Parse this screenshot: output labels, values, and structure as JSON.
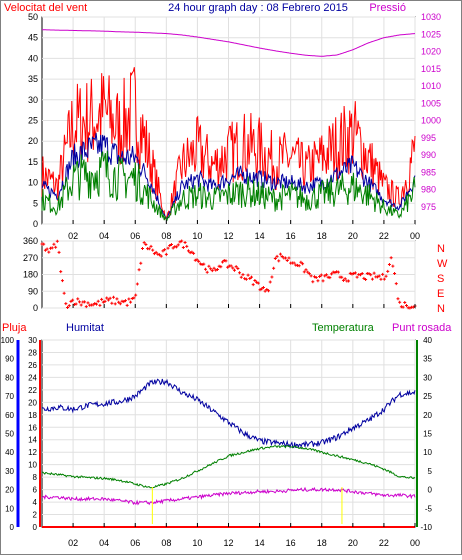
{
  "header": {
    "left_label": "Velocitat del vent",
    "title": "24 hour graph day : 08 Febrero 2015",
    "right_label": "Pressió"
  },
  "colors": {
    "red": "#ff0000",
    "blue": "#0000a0",
    "green": "#008000",
    "magenta": "#cc00cc",
    "yellow": "#ffff00",
    "axis_blue": "#0000ff"
  },
  "x_ticks": [
    "02",
    "04",
    "06",
    "08",
    "10",
    "12",
    "14",
    "16",
    "18",
    "20",
    "22",
    "00"
  ],
  "chart_data": [
    {
      "type": "line",
      "title": "24 hour graph day : 08 Febrero 2015",
      "xlabel": "",
      "ylabel": "Velocitat del vent",
      "y2label": "Pressió",
      "ylim": [
        0,
        50
      ],
      "y2lim": [
        970,
        1030
      ],
      "y_ticks": [
        "0",
        "5",
        "10",
        "15",
        "20",
        "25",
        "30",
        "35",
        "40",
        "45",
        "50"
      ],
      "y2_ticks": [
        "975",
        "980",
        "985",
        "990",
        "995",
        "1000",
        "1005",
        "1010",
        "1015",
        "1020",
        "1025",
        "1030"
      ],
      "x_hours": [
        0,
        1,
        2,
        3,
        4,
        5,
        6,
        7,
        8,
        9,
        10,
        11,
        12,
        13,
        14,
        15,
        16,
        17,
        18,
        19,
        20,
        21,
        22,
        23,
        24
      ],
      "series": [
        {
          "name": "",
          "color": "#ff0000",
          "axis": "left",
          "values": [
            12,
            9,
            24,
            25,
            27,
            23,
            28,
            15,
            1,
            14,
            18,
            14,
            17,
            19,
            18,
            15,
            16,
            13,
            16,
            19,
            22,
            16,
            9,
            6,
            18
          ]
        },
        {
          "name": "",
          "color": "#0000a0",
          "axis": "left",
          "values": [
            9,
            7,
            16,
            18,
            19,
            16,
            16,
            10,
            1,
            9,
            11,
            9,
            11,
            12,
            11,
            10,
            10,
            9,
            10,
            12,
            14,
            10,
            6,
            4,
            11
          ]
        },
        {
          "name": "",
          "color": "#008000",
          "axis": "left",
          "values": [
            6,
            4,
            11,
            12,
            13,
            11,
            11,
            6,
            1,
            6,
            7,
            6,
            7,
            8,
            7,
            6,
            7,
            6,
            7,
            8,
            9,
            7,
            4,
            2,
            8
          ]
        },
        {
          "name": "Pressió",
          "color": "#cc00cc",
          "axis": "right",
          "values": [
            1026.3,
            1026.2,
            1026.1,
            1026.0,
            1025.9,
            1025.7,
            1025.6,
            1025.4,
            1025.2,
            1024.8,
            1024.2,
            1023.5,
            1022.8,
            1021.9,
            1021.0,
            1020.2,
            1019.5,
            1018.9,
            1018.6,
            1019.0,
            1020.5,
            1022.5,
            1024.0,
            1024.8,
            1025.2
          ]
        }
      ]
    },
    {
      "type": "scatter",
      "title": "",
      "ylabel": "Direcció del vent",
      "ylim": [
        0,
        360
      ],
      "y_ticks": [
        "0",
        "90",
        "180",
        "270",
        "360"
      ],
      "y2_ticks": [
        "N",
        "W",
        "S",
        "E",
        "N"
      ],
      "x_hours": [
        0,
        0.5,
        1,
        1.5,
        2,
        2.5,
        3,
        3.5,
        4,
        4.5,
        5,
        5.5,
        6,
        6.5,
        7,
        7.5,
        8,
        8.5,
        9,
        9.5,
        10,
        10.5,
        11,
        11.5,
        12,
        12.5,
        13,
        13.5,
        14,
        14.5,
        15,
        15.5,
        16,
        16.5,
        17,
        17.5,
        18,
        18.5,
        19,
        19.5,
        20,
        20.5,
        21,
        21.5,
        22,
        22.5,
        23,
        23.5,
        24
      ],
      "series": [
        {
          "name": "",
          "color": "#ff0000",
          "values": [
            340,
            300,
            350,
            15,
            40,
            30,
            25,
            20,
            35,
            40,
            35,
            30,
            45,
            340,
            320,
            280,
            300,
            340,
            350,
            320,
            260,
            220,
            190,
            240,
            230,
            210,
            170,
            150,
            120,
            80,
            260,
            280,
            250,
            240,
            200,
            150,
            160,
            170,
            180,
            160,
            170,
            175,
            165,
            170,
            160,
            270,
            20,
            15,
            15
          ]
        }
      ]
    },
    {
      "type": "line",
      "title": "",
      "legend": [
        "Pluja",
        "Humitat",
        "Temperatura",
        "Punt rosada"
      ],
      "ylim_humitat": [
        0,
        100
      ],
      "ylim_pluja": [
        0,
        30
      ],
      "ylim_temp": [
        -10,
        40
      ],
      "y_humitat_ticks": [
        "0",
        "10",
        "20",
        "30",
        "40",
        "50",
        "60",
        "70",
        "80",
        "90",
        "100"
      ],
      "y_pluja_ticks": [
        "0",
        "2",
        "4",
        "6",
        "8",
        "10",
        "12",
        "14",
        "16",
        "18",
        "20",
        "22",
        "24",
        "26",
        "28",
        "30"
      ],
      "y_temp_ticks": [
        "-10",
        "-5",
        "0",
        "5",
        "10",
        "15",
        "20",
        "25",
        "30",
        "35",
        "40"
      ],
      "x_hours": [
        0,
        1,
        2,
        3,
        4,
        5,
        6,
        7,
        8,
        9,
        10,
        11,
        12,
        13,
        14,
        15,
        16,
        17,
        18,
        19,
        20,
        21,
        22,
        23,
        24
      ],
      "series": [
        {
          "name": "Humitat",
          "color": "#0000a0",
          "axis": "humitat",
          "values": [
            63,
            64,
            63,
            65,
            66,
            67,
            70,
            77,
            78,
            72,
            68,
            62,
            56,
            50,
            46,
            45,
            44,
            44,
            45,
            48,
            53,
            57,
            63,
            71,
            72
          ]
        },
        {
          "name": "Temperatura",
          "color": "#008000",
          "axis": "temp",
          "values": [
            4.5,
            4,
            3.5,
            3.2,
            3,
            2.5,
            1.5,
            0.5,
            1.5,
            3,
            5,
            7,
            9,
            10,
            11,
            11.5,
            11.5,
            11,
            10,
            9,
            8,
            7,
            5.5,
            3.5,
            3.0
          ]
        },
        {
          "name": "Punt rosada",
          "color": "#cc00cc",
          "axis": "temp",
          "values": [
            -2,
            -2,
            -2.5,
            -2.5,
            -2.5,
            -3,
            -3.5,
            -3.5,
            -3,
            -2.5,
            -2,
            -1.5,
            -1,
            -0.8,
            -0.5,
            -0.5,
            -0.2,
            0,
            0,
            0,
            -0.5,
            -1,
            -1.5,
            -1.5,
            -1.8
          ]
        },
        {
          "name": "Pluja",
          "color": "#ff0000",
          "axis": "pluja",
          "values": [
            0,
            0,
            0,
            0,
            0,
            0,
            0,
            0,
            0,
            0,
            0,
            0,
            0,
            0,
            0,
            0,
            0,
            0,
            0,
            0,
            0,
            0,
            0,
            0,
            0
          ]
        }
      ]
    }
  ]
}
